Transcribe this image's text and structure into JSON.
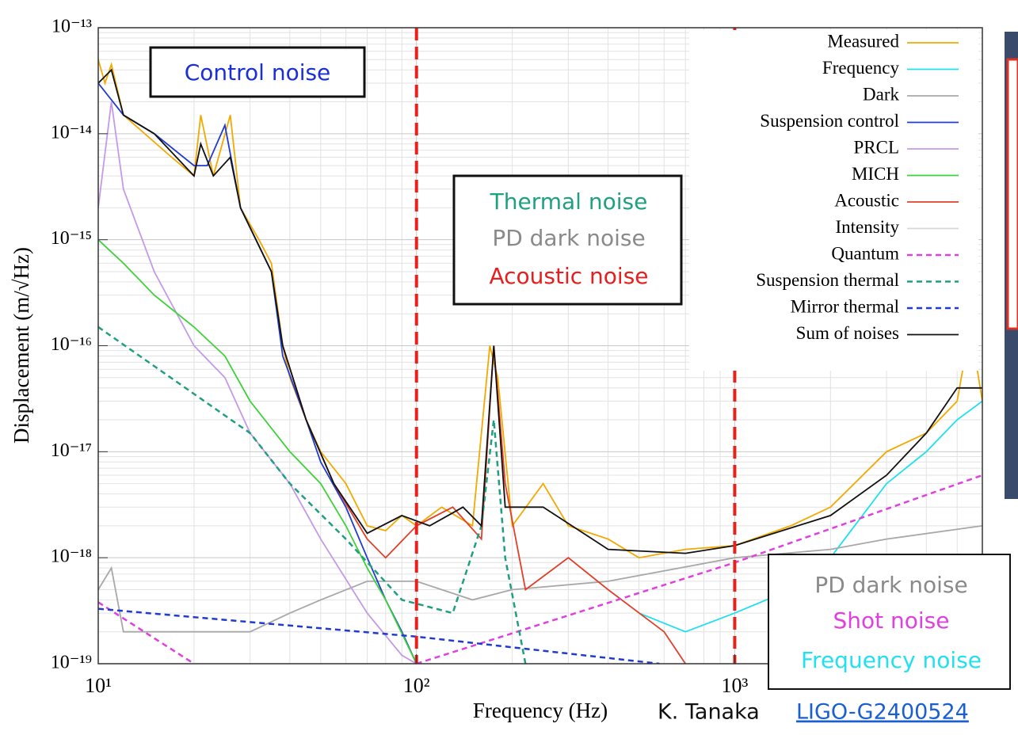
{
  "chart_data": {
    "type": "line",
    "xscale": "log",
    "yscale": "log",
    "grid": true,
    "legend": "upper right",
    "xlabel": "Frequency (Hz)",
    "ylabel": "Displacement (m/√Hz)",
    "xlim": [
      10,
      6000
    ],
    "ylim": [
      1e-19,
      1e-13
    ],
    "xticks": [
      {
        "value": 10,
        "label": "10¹"
      },
      {
        "value": 100,
        "label": "10²"
      },
      {
        "value": 1000,
        "label": "10³"
      }
    ],
    "yticks": [
      {
        "value": 1e-13,
        "label": "10⁻¹³"
      },
      {
        "value": 1e-14,
        "label": "10⁻¹⁴"
      },
      {
        "value": 1e-15,
        "label": "10⁻¹⁵"
      },
      {
        "value": 1e-16,
        "label": "10⁻¹⁶"
      },
      {
        "value": 1e-17,
        "label": "10⁻¹⁷"
      },
      {
        "value": 1e-18,
        "label": "10⁻¹⁸"
      },
      {
        "value": 1e-19,
        "label": "10⁻¹⁹"
      }
    ],
    "vlines": [
      100,
      1000
    ],
    "vline_color": "#e8211b",
    "series": [
      {
        "name": "Measured",
        "color": "#f2a900",
        "dash": false,
        "x": [
          10,
          10.5,
          11,
          12,
          14,
          17,
          20,
          21,
          23,
          26,
          28,
          32,
          35,
          38,
          40,
          45,
          50,
          60,
          70,
          80,
          90,
          100,
          120,
          150,
          170,
          180,
          200,
          250,
          300,
          400,
          500,
          700,
          1000,
          1500,
          2000,
          3000,
          4000,
          5000,
          5500,
          6000
        ],
        "values": [
          5e-14,
          3e-14,
          4.5e-14,
          1.5e-14,
          1e-14,
          6e-15,
          4e-15,
          1.5e-14,
          4e-15,
          1.5e-14,
          2e-15,
          1e-15,
          6e-16,
          1e-16,
          5e-17,
          2e-17,
          1e-17,
          5e-18,
          2e-18,
          1.8e-18,
          2.5e-18,
          2e-18,
          3e-18,
          2e-18,
          1e-16,
          5e-17,
          2e-18,
          5e-18,
          2e-18,
          1.5e-18,
          1e-18,
          1.2e-18,
          1.3e-18,
          2e-18,
          3e-18,
          1e-17,
          1.5e-17,
          3e-17,
          1.5e-16,
          3e-17
        ]
      },
      {
        "name": "Frequency",
        "color": "#1ee0f0",
        "dash": false,
        "x": [
          500,
          700,
          1000,
          1500,
          2000,
          3000,
          4000,
          5000,
          6000
        ],
        "values": [
          3e-19,
          2e-19,
          3e-19,
          5e-19,
          1e-18,
          5e-18,
          1e-17,
          2e-17,
          3e-17
        ]
      },
      {
        "name": "Dark",
        "color": "#a8a8a8",
        "dash": false,
        "x": [
          10,
          11,
          12,
          20,
          30,
          40,
          50,
          70,
          100,
          150,
          200,
          400,
          1000,
          2000,
          3000,
          6000
        ],
        "values": [
          5e-19,
          8e-19,
          2e-19,
          2e-19,
          2e-19,
          3e-19,
          4e-19,
          6e-19,
          6e-19,
          4e-19,
          5e-19,
          6e-19,
          1e-18,
          1.2e-18,
          1.5e-18,
          2e-18
        ]
      },
      {
        "name": "Suspension control",
        "color": "#1f3bd1",
        "dash": false,
        "x": [
          10,
          12,
          15,
          20,
          22,
          25,
          28,
          35,
          38,
          45,
          50,
          60,
          70,
          80,
          90,
          100
        ],
        "values": [
          3e-14,
          1.5e-14,
          1e-14,
          5e-15,
          5e-15,
          1.2e-14,
          2e-15,
          5e-16,
          8e-17,
          2e-17,
          8e-18,
          3e-18,
          1e-18,
          4e-19,
          2e-19,
          1e-19
        ]
      },
      {
        "name": "PRCL",
        "color": "#c39ae8",
        "dash": false,
        "x": [
          10,
          11,
          12,
          15,
          20,
          25,
          30,
          40,
          50,
          70,
          90,
          100
        ],
        "values": [
          2e-15,
          2e-14,
          3e-15,
          5e-16,
          1e-16,
          5e-17,
          1.5e-17,
          5e-18,
          1.5e-18,
          3e-19,
          1.2e-19,
          1e-19
        ]
      },
      {
        "name": "MICH",
        "color": "#3ed13a",
        "dash": false,
        "x": [
          10,
          12,
          15,
          20,
          25,
          30,
          40,
          50,
          60,
          70,
          80,
          100
        ],
        "values": [
          1e-15,
          6e-16,
          3e-16,
          1.5e-16,
          8e-17,
          3e-17,
          1e-17,
          5e-18,
          2e-18,
          8e-19,
          4e-19,
          1e-19
        ]
      },
      {
        "name": "Acoustic",
        "color": "#e0402a",
        "dash": false,
        "x": [
          38,
          45,
          55,
          70,
          80,
          100,
          130,
          160,
          175,
          190,
          220,
          300,
          400,
          600,
          700
        ],
        "values": [
          1e-16,
          2e-17,
          5e-18,
          1.5e-18,
          1e-18,
          2e-18,
          3e-18,
          1.5e-18,
          1e-16,
          5e-18,
          5e-19,
          1e-18,
          5e-19,
          2e-19,
          1e-19
        ]
      },
      {
        "name": "Intensity",
        "color": "#d8d8d8",
        "dash": false,
        "x": [],
        "values": []
      },
      {
        "name": "Quantum",
        "color": "#e040e0",
        "dash": true,
        "x": [
          10,
          20,
          50,
          100,
          1000,
          6000
        ],
        "values": [
          3.8e-19,
          1e-19,
          null,
          1e-19,
          9e-19,
          6e-18
        ]
      },
      {
        "name": "Suspension thermal",
        "color": "#1f9e80",
        "dash": true,
        "x": [
          10,
          30,
          40,
          60,
          90,
          130,
          160,
          175,
          190,
          220
        ],
        "values": [
          1.5e-16,
          1.5e-17,
          5e-18,
          1.5e-18,
          4e-19,
          3e-19,
          2e-18,
          2e-17,
          1e-18,
          1e-19
        ]
      },
      {
        "name": "Mirror thermal",
        "color": "#1f3bd1",
        "dash": true,
        "x": [
          10,
          100,
          580
        ],
        "values": [
          3.3e-19,
          1.8e-19,
          1e-19
        ]
      },
      {
        "name": "Sum of noises",
        "color": "#111111",
        "dash": false,
        "x": [
          10,
          11,
          12,
          15,
          20,
          21,
          23,
          26,
          28,
          35,
          38,
          45,
          55,
          70,
          90,
          110,
          140,
          160,
          175,
          190,
          250,
          400,
          700,
          1000,
          2000,
          3000,
          4000,
          5000,
          6000
        ],
        "values": [
          3e-14,
          4e-14,
          1.5e-14,
          1e-14,
          4e-15,
          8e-15,
          4e-15,
          6e-15,
          2e-15,
          5e-16,
          1e-16,
          2e-17,
          5e-18,
          1.7e-18,
          2.5e-18,
          2e-18,
          3e-18,
          2e-18,
          1e-16,
          3e-18,
          3e-18,
          1.2e-18,
          1.1e-18,
          1.3e-18,
          2.5e-18,
          6e-18,
          1.5e-17,
          4e-17,
          4e-17
        ]
      }
    ]
  },
  "annotations": {
    "control": "Control noise",
    "mid": [
      "Thermal noise",
      "PD dark noise",
      "Acoustic noise"
    ],
    "corner": [
      "PD dark noise",
      "Shot noise",
      "Frequency noise"
    ],
    "author": "K. Tanaka",
    "link": "LIGO-G2400524"
  }
}
